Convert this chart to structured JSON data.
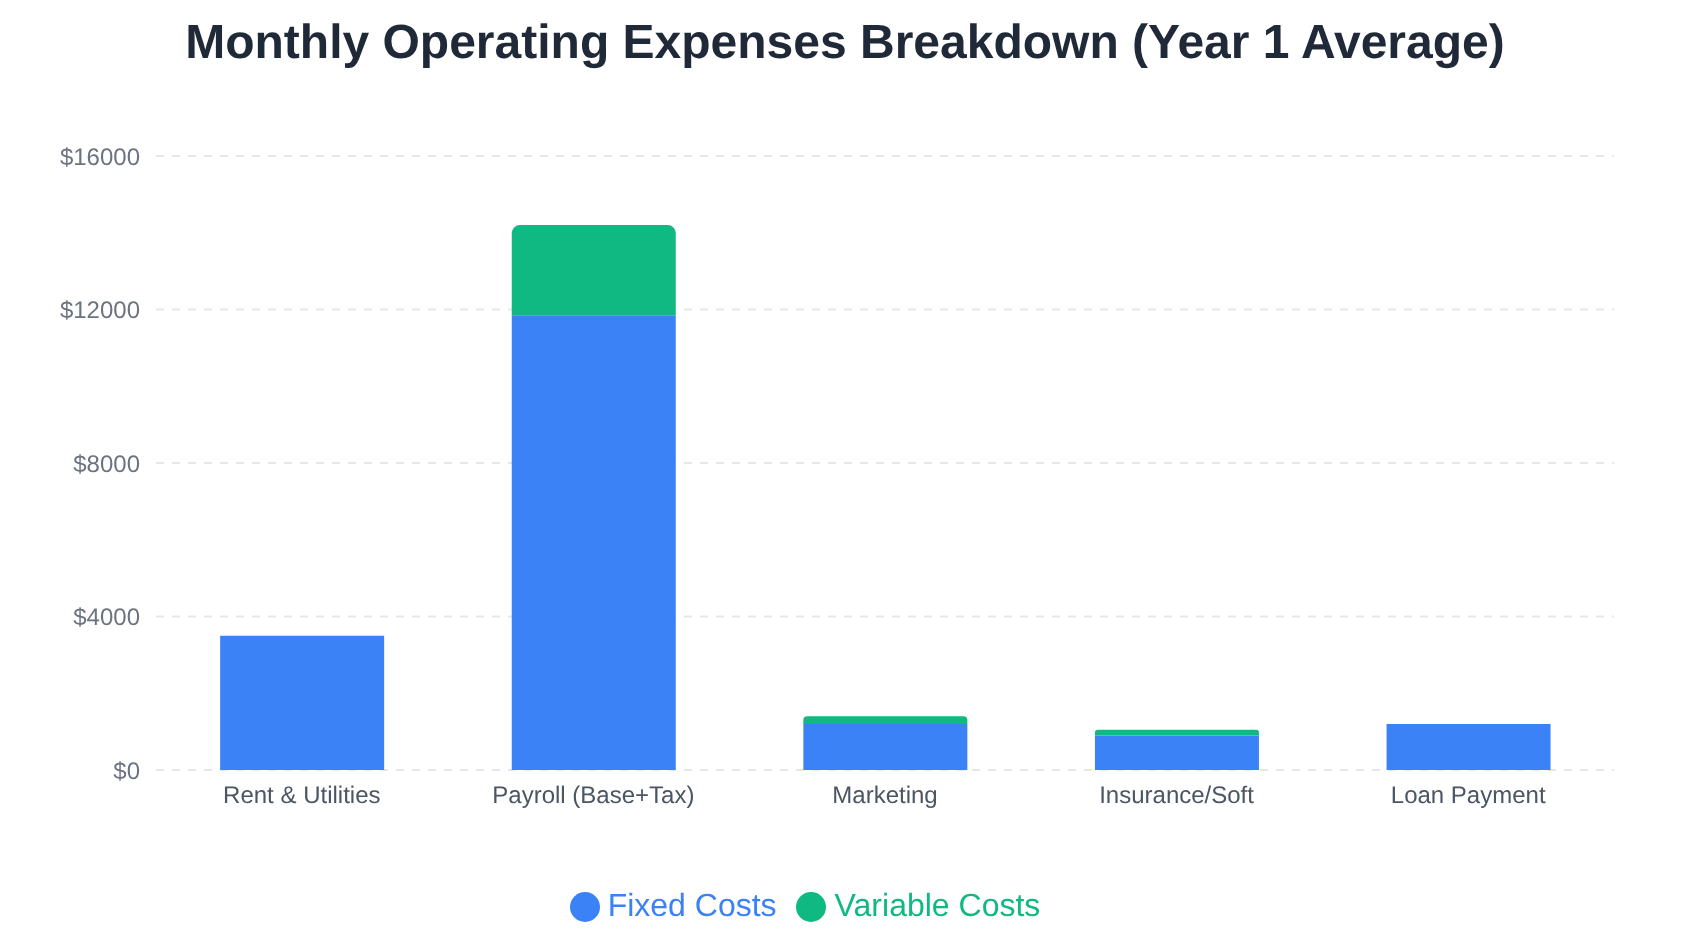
{
  "chart_data": {
    "type": "bar",
    "title": "Monthly Operating Expenses Breakdown (Year 1 Average)",
    "categories": [
      "Rent & Utilities",
      "Payroll (Base+Tax)",
      "Marketing",
      "Insurance/Soft",
      "Loan Payment"
    ],
    "series": [
      {
        "name": "Fixed Costs",
        "color": "#3b82f6",
        "values": [
          3500,
          11850,
          1200,
          900,
          1200
        ]
      },
      {
        "name": "Variable Costs",
        "color": "#10b981",
        "values": [
          0,
          2350,
          200,
          150,
          0
        ]
      }
    ],
    "stacked": true,
    "ylim": [
      0,
      16000
    ],
    "yticks": [
      {
        "value": 0,
        "label": "$0"
      },
      {
        "value": 4000,
        "label": "$4000"
      },
      {
        "value": 8000,
        "label": "$8000"
      },
      {
        "value": 12000,
        "label": "$12000"
      },
      {
        "value": 16000,
        "label": "$16000"
      }
    ],
    "grid": "y",
    "legend": "bottom"
  }
}
